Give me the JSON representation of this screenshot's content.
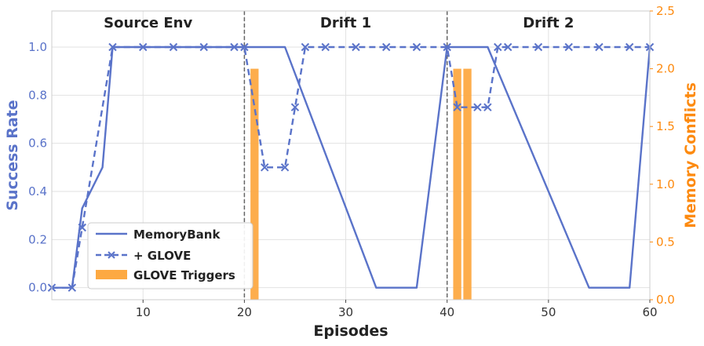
{
  "chart_data": {
    "type": "line",
    "xlabel": "Episodes",
    "ylabel": "Success Rate",
    "y2label": "Memory Conflicts",
    "xlim": [
      1,
      60
    ],
    "ylim": [
      -0.05,
      1.15
    ],
    "y2lim": [
      0,
      2.5
    ],
    "xticks": [
      10,
      20,
      30,
      40,
      50,
      60
    ],
    "yticks": [
      0.0,
      0.2,
      0.4,
      0.6,
      0.8,
      1.0
    ],
    "y2ticks": [
      0.0,
      0.5,
      1.0,
      1.5,
      2.0,
      2.5
    ],
    "grid": true,
    "legend_position": "lower-left",
    "phases": [
      {
        "label": "Source Env",
        "x_center": 10.5
      },
      {
        "label": "Drift 1",
        "x_center": 30
      },
      {
        "label": "Drift 2",
        "x_center": 50
      }
    ],
    "phase_boundaries": [
      20,
      40
    ],
    "series": [
      {
        "name": "MemoryBank",
        "style": "solid",
        "color": "#5a73c9",
        "x": [
          1,
          3,
          4,
          6,
          7,
          20,
          24,
          33,
          37,
          40,
          44,
          54,
          58,
          60
        ],
        "y": [
          0,
          0,
          0.33,
          0.5,
          1.0,
          1.0,
          1.0,
          0,
          0,
          1.0,
          1.0,
          0,
          0,
          1.0
        ]
      },
      {
        "name": "+ GLOVE",
        "style": "dashed",
        "color": "#5a73c9",
        "marker": "x",
        "x": [
          1,
          3,
          4,
          7,
          10,
          13,
          16,
          19,
          20,
          22,
          24,
          25,
          26,
          28,
          31,
          34,
          37,
          40,
          41,
          43,
          44,
          45,
          46,
          49,
          52,
          55,
          58,
          60
        ],
        "y": [
          0,
          0,
          0.25,
          1.0,
          1.0,
          1.0,
          1.0,
          1.0,
          1.0,
          0.5,
          0.5,
          0.75,
          1.0,
          1.0,
          1.0,
          1.0,
          1.0,
          1.0,
          0.75,
          0.75,
          0.75,
          1.0,
          1.0,
          1.0,
          1.0,
          1.0,
          1.0,
          1.0
        ]
      },
      {
        "name": "GLOVE Triggers",
        "type": "bar",
        "axis": "y2",
        "color": "#fda942",
        "x": [
          21,
          41,
          42
        ],
        "values": [
          2,
          2,
          2
        ]
      }
    ]
  }
}
